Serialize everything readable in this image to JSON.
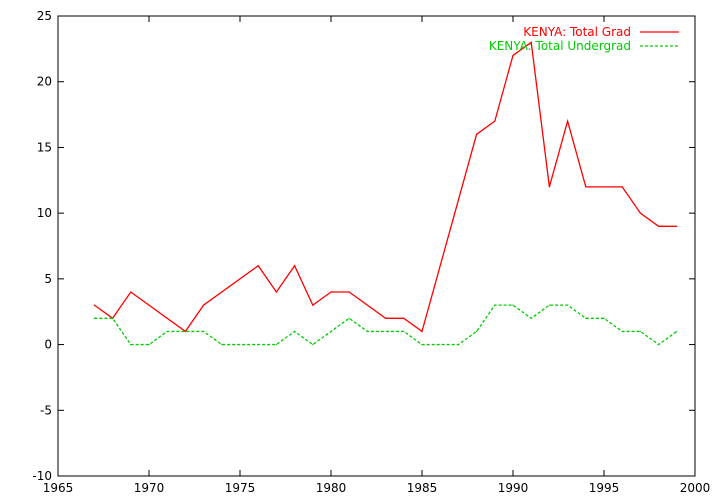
{
  "chart_data": {
    "type": "line",
    "title": "",
    "xlabel": "",
    "ylabel": "",
    "xlim": [
      1965,
      2000
    ],
    "ylim": [
      -10,
      25
    ],
    "xticks": [
      1965,
      1970,
      1975,
      1980,
      1985,
      1990,
      1995,
      2000
    ],
    "yticks": [
      -10,
      -5,
      0,
      5,
      10,
      15,
      20,
      25
    ],
    "grid": false,
    "legend_placement": "top-right",
    "series": [
      {
        "name": "KENYA: Total Grad",
        "color": "#ff0000",
        "dash": "solid",
        "points": [
          [
            1967,
            3
          ],
          [
            1968,
            2
          ],
          [
            1969,
            4
          ],
          [
            1972,
            1
          ],
          [
            1973,
            3
          ],
          [
            1976,
            6
          ],
          [
            1977,
            4
          ],
          [
            1978,
            6
          ],
          [
            1979,
            3
          ],
          [
            1980,
            4
          ],
          [
            1981,
            4
          ],
          [
            1983,
            2
          ],
          [
            1984,
            2
          ],
          [
            1985,
            1
          ],
          [
            1988,
            16
          ],
          [
            1989,
            17
          ],
          [
            1990,
            22
          ],
          [
            1991,
            23
          ],
          [
            1992,
            12
          ],
          [
            1993,
            17
          ],
          [
            1994,
            12
          ],
          [
            1996,
            12
          ],
          [
            1997,
            10
          ],
          [
            1998,
            9
          ],
          [
            1999,
            9
          ]
        ]
      },
      {
        "name": "KENYA: Total Undergrad",
        "color": "#00cc00",
        "dash": "dashed",
        "points": [
          [
            1967,
            2
          ],
          [
            1968,
            2
          ],
          [
            1969,
            0
          ],
          [
            1970,
            0
          ],
          [
            1971,
            1
          ],
          [
            1973,
            1
          ],
          [
            1974,
            0
          ],
          [
            1977,
            0
          ],
          [
            1978,
            1
          ],
          [
            1979,
            0
          ],
          [
            1981,
            2
          ],
          [
            1982,
            1
          ],
          [
            1984,
            1
          ],
          [
            1985,
            0
          ],
          [
            1987,
            0
          ],
          [
            1988,
            1
          ],
          [
            1989,
            3
          ],
          [
            1990,
            3
          ],
          [
            1991,
            2
          ],
          [
            1992,
            3
          ],
          [
            1993,
            3
          ],
          [
            1994,
            2
          ],
          [
            1995,
            2
          ],
          [
            1996,
            1
          ],
          [
            1997,
            1
          ],
          [
            1998,
            0
          ],
          [
            1999,
            1
          ]
        ]
      }
    ]
  }
}
